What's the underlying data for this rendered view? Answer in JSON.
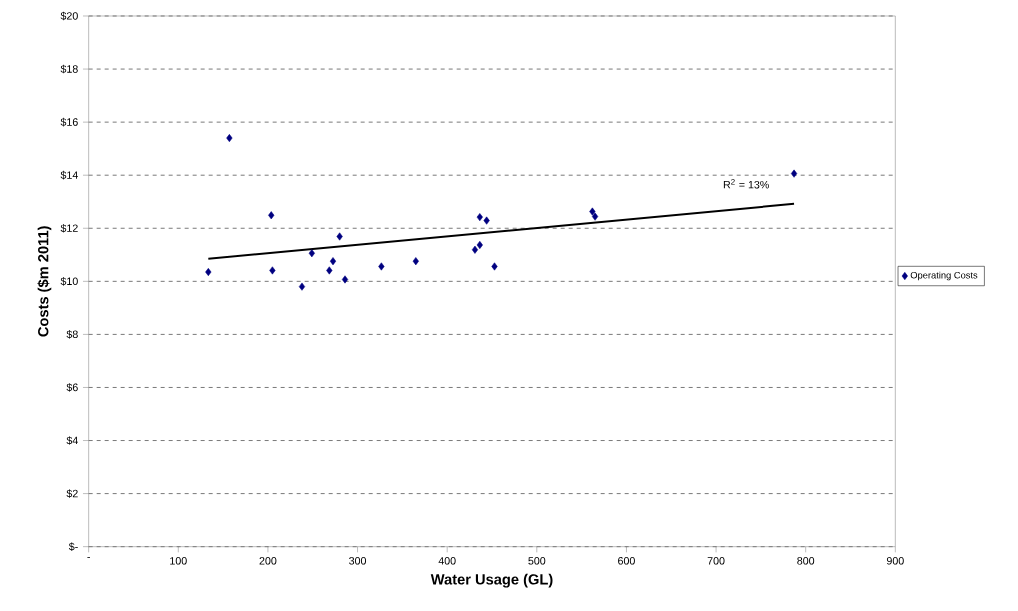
{
  "chart_data": {
    "type": "scatter",
    "xlabel": "Water Usage (GL)",
    "ylabel": "Costs ($m 2011)",
    "xlim": [
      0,
      900
    ],
    "ylim": [
      0,
      20
    ],
    "xticks": [
      {
        "value": 0,
        "label": "-"
      },
      100,
      200,
      300,
      400,
      500,
      600,
      700,
      800,
      900
    ],
    "yticks": [
      {
        "value": 0,
        "label": "$-"
      },
      {
        "value": 2,
        "label": "$2"
      },
      {
        "value": 4,
        "label": "$4"
      },
      {
        "value": 6,
        "label": "$6"
      },
      {
        "value": 8,
        "label": "$8"
      },
      {
        "value": 10,
        "label": "$10"
      },
      {
        "value": 12,
        "label": "$12"
      },
      {
        "value": 14,
        "label": "$14"
      },
      {
        "value": 16,
        "label": "$16"
      },
      {
        "value": 18,
        "label": "$18"
      },
      {
        "value": 20,
        "label": "$20"
      }
    ],
    "grid": "y",
    "legend": "right",
    "marker": "diamond",
    "annotations": [
      "R$^{2}$ = 13%"
    ],
    "series": [
      {
        "name": "Operating Costs",
        "color": "#000080",
        "x": [
          133.5,
          157,
          203.7,
          205,
          238,
          249,
          268.5,
          272.6,
          280,
          286,
          326.6,
          365,
          431,
          436.4,
          436.4,
          444,
          452.8,
          562,
          565,
          787
        ],
        "values": [
          10.35,
          15.4,
          12.49,
          10.41,
          9.8,
          11.06,
          10.41,
          10.76,
          11.69,
          10.07,
          10.56,
          10.76,
          11.19,
          11.37,
          12.42,
          12.29,
          10.56,
          12.63,
          12.44,
          14.06
        ]
      },
      {
        "type": "line",
        "marker": "none",
        "color": "#000000",
        "x": [
          133.5,
          787
        ],
        "values": [
          10.85,
          12.92
        ]
      }
    ]
  }
}
